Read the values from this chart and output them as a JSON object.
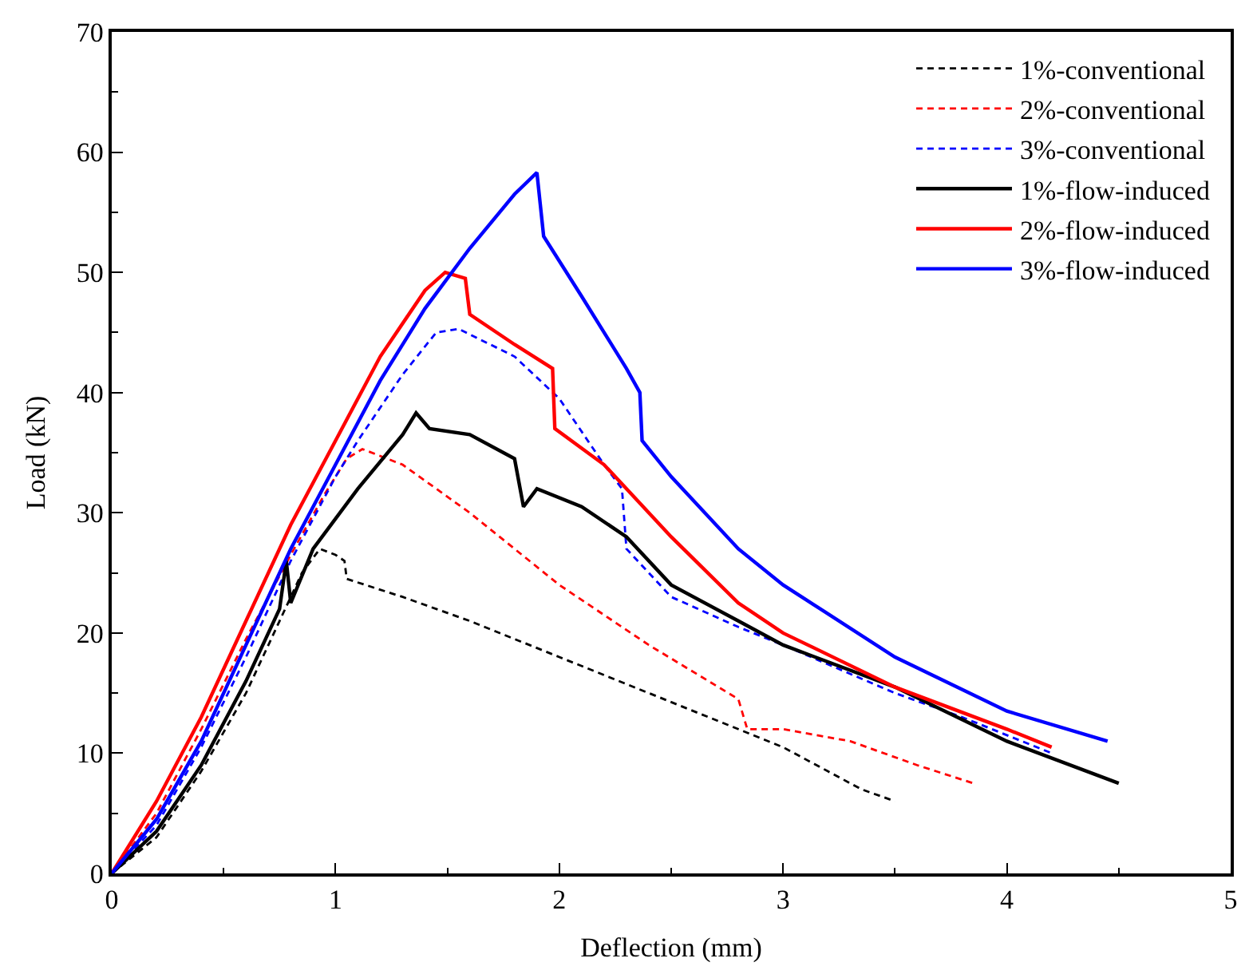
{
  "chart_data": {
    "type": "line",
    "xlabel": "Deflection (mm)",
    "ylabel": "Load (kN)",
    "xlim": [
      0,
      5
    ],
    "xticks": [
      0,
      1,
      2,
      3,
      4,
      5
    ],
    "ylim": [
      0,
      70
    ],
    "yticks": [
      0,
      10,
      20,
      30,
      40,
      50,
      60,
      70
    ],
    "grid": false,
    "legend": "top right",
    "marker": "none",
    "series": [
      {
        "name": "1%-conventional",
        "color": "#000000",
        "line_style": "dashed",
        "x": [
          0,
          0.2,
          0.4,
          0.6,
          0.75,
          0.85,
          0.93,
          1.0,
          1.04,
          1.05,
          1.3,
          1.6,
          2.0,
          2.4,
          2.8,
          3.0,
          3.2,
          3.35,
          3.5
        ],
        "values": [
          0,
          3,
          8.5,
          15,
          21,
          25,
          27,
          26.5,
          26,
          24.5,
          23,
          21,
          18,
          15,
          12,
          10.5,
          8.5,
          7,
          6
        ]
      },
      {
        "name": "2%-conventional",
        "color": "#ff0000",
        "line_style": "dashed",
        "x": [
          0,
          0.2,
          0.4,
          0.6,
          0.8,
          0.95,
          1.05,
          1.12,
          1.3,
          1.6,
          2.0,
          2.4,
          2.8,
          2.84,
          3.0,
          3.3,
          3.6,
          3.85
        ],
        "values": [
          0,
          5,
          12,
          19.5,
          26.5,
          31.5,
          34.5,
          35.3,
          34,
          30,
          24,
          19,
          14.5,
          12,
          12,
          11,
          9,
          7.5
        ]
      },
      {
        "name": "3%-conventional",
        "color": "#0000ff",
        "line_style": "dashed",
        "x": [
          0,
          0.2,
          0.4,
          0.6,
          0.8,
          1.0,
          1.1,
          1.3,
          1.45,
          1.55,
          1.8,
          2.0,
          2.2,
          2.28,
          2.3,
          2.5,
          2.8,
          3.0,
          3.5,
          3.8,
          4.0,
          4.2
        ],
        "values": [
          0,
          4,
          10.5,
          18,
          26,
          33,
          36,
          41.5,
          45,
          45.3,
          43,
          39.5,
          34,
          32,
          27,
          23,
          20.5,
          19,
          15,
          13,
          11.5,
          10
        ]
      },
      {
        "name": "1%-flow-induced",
        "color": "#000000",
        "line_style": "solid",
        "x": [
          0,
          0.2,
          0.4,
          0.6,
          0.75,
          0.78,
          0.8,
          0.9,
          1.1,
          1.3,
          1.36,
          1.42,
          1.6,
          1.8,
          1.84,
          1.9,
          2.1,
          2.3,
          2.5,
          2.8,
          3.0,
          3.5,
          4.0,
          4.5
        ],
        "values": [
          0,
          3.5,
          9,
          16,
          22,
          26,
          22.5,
          27,
          32,
          36.5,
          38.3,
          37,
          36.5,
          34.5,
          30.5,
          32,
          30.5,
          28,
          24,
          21,
          19,
          15.5,
          11,
          7.5
        ]
      },
      {
        "name": "2%-flow-induced",
        "color": "#ff0000",
        "line_style": "solid",
        "x": [
          0,
          0.2,
          0.4,
          0.6,
          0.8,
          1.0,
          1.2,
          1.4,
          1.49,
          1.58,
          1.6,
          1.8,
          1.97,
          1.98,
          2.2,
          2.5,
          2.8,
          3.0,
          3.5,
          4.0,
          4.2
        ],
        "values": [
          0,
          6,
          13,
          21,
          29,
          36,
          43,
          48.5,
          50,
          49.5,
          46.5,
          44,
          42,
          37,
          34,
          28,
          22.5,
          20,
          15.5,
          12,
          10.5
        ]
      },
      {
        "name": "3%-flow-induced",
        "color": "#0000ff",
        "line_style": "solid",
        "x": [
          0,
          0.2,
          0.4,
          0.6,
          0.8,
          1.0,
          1.2,
          1.4,
          1.6,
          1.8,
          1.9,
          1.93,
          2.1,
          2.3,
          2.36,
          2.37,
          2.5,
          2.8,
          3.0,
          3.5,
          4.0,
          4.45
        ],
        "values": [
          0,
          4.5,
          11,
          19,
          27,
          34,
          41,
          47,
          52,
          56.5,
          58.3,
          53,
          48,
          42,
          40,
          36,
          33,
          27,
          24,
          18,
          13.5,
          11
        ]
      }
    ]
  }
}
